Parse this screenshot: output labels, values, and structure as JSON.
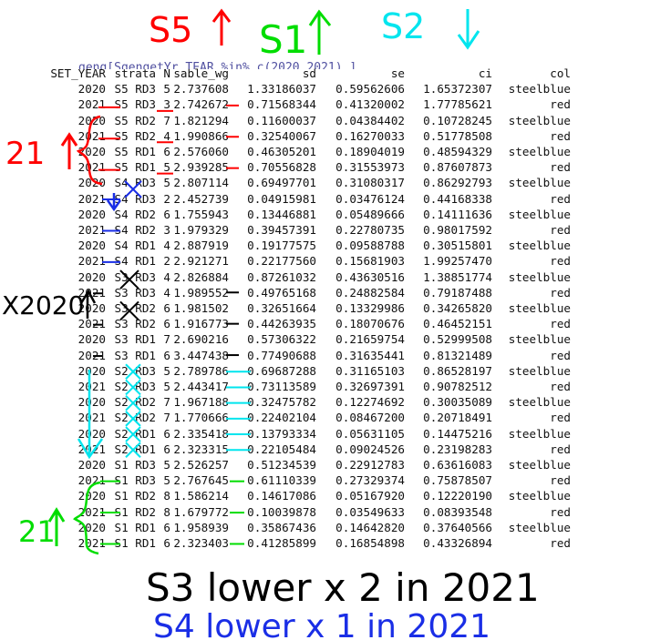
{
  "top_code": "geng[SgengetYr_TEAR %in% c(2020,2021),]",
  "annotations": {
    "top": [
      {
        "text": "S5",
        "arrow": "up",
        "color": "#ff0000"
      },
      {
        "text": "S1",
        "arrow": "up",
        "color": "#00dd00"
      },
      {
        "text": "S2",
        "arrow": "down",
        "color": "#00e5ee"
      }
    ],
    "left_21_red": "21",
    "left_x2020": "X2020",
    "left_21_green": "21",
    "note_s3": "S3 lower x 2 in 2021",
    "note_s4": "S4 lower x 1 in 2021",
    "colors": {
      "red": "#ff0000",
      "green": "#00dd00",
      "cyan": "#00e5ee",
      "blue": "#1a2ee6",
      "black": "#000000"
    }
  },
  "table": {
    "headers": [
      "SET_YEAR",
      "strata",
      "N",
      "sable_wg",
      "sd",
      "se",
      "ci",
      "col"
    ],
    "rows": [
      [
        "2020",
        "S5 RD3",
        "5",
        "2.737608",
        "1.33186037",
        "0.59562606",
        "1.65372307",
        "steelblue"
      ],
      [
        "2021",
        "S5 RD3",
        "3",
        "2.742672",
        "0.71568344",
        "0.41320002",
        "1.77785621",
        "red"
      ],
      [
        "2020",
        "S5 RD2",
        "7",
        "1.821294",
        "0.11600037",
        "0.04384402",
        "0.10728245",
        "steelblue"
      ],
      [
        "2021",
        "S5 RD2",
        "4",
        "1.990866",
        "0.32540067",
        "0.16270033",
        "0.51778508",
        "red"
      ],
      [
        "2020",
        "S5 RD1",
        "6",
        "2.576060",
        "0.46305201",
        "0.18904019",
        "0.48594329",
        "steelblue"
      ],
      [
        "2021",
        "S5 RD1",
        "5",
        "2.939285",
        "0.70556828",
        "0.31553973",
        "0.87607873",
        "red"
      ],
      [
        "2020",
        "S4 RD3",
        "5",
        "2.807114",
        "0.69497701",
        "0.31080317",
        "0.86292793",
        "steelblue"
      ],
      [
        "2021",
        "S4 RD3",
        "2",
        "2.452739",
        "0.04915981",
        "0.03476124",
        "0.44168338",
        "red"
      ],
      [
        "2020",
        "S4 RD2",
        "6",
        "1.755943",
        "0.13446881",
        "0.05489666",
        "0.14111636",
        "steelblue"
      ],
      [
        "2021",
        "S4 RD2",
        "3",
        "1.979329",
        "0.39457391",
        "0.22780735",
        "0.98017592",
        "red"
      ],
      [
        "2020",
        "S4 RD1",
        "4",
        "2.887919",
        "0.19177575",
        "0.09588788",
        "0.30515801",
        "steelblue"
      ],
      [
        "2021",
        "S4 RD1",
        "2",
        "2.921271",
        "0.22177560",
        "0.15681903",
        "1.99257470",
        "red"
      ],
      [
        "2020",
        "S3 RD3",
        "4",
        "2.826884",
        "0.87261032",
        "0.43630516",
        "1.38851774",
        "steelblue"
      ],
      [
        "2021",
        "S3 RD3",
        "4",
        "1.989552",
        "0.49765168",
        "0.24882584",
        "0.79187488",
        "red"
      ],
      [
        "2020",
        "S3 RD2",
        "6",
        "1.981502",
        "0.32651664",
        "0.13329986",
        "0.34265820",
        "steelblue"
      ],
      [
        "2021",
        "S3 RD2",
        "6",
        "1.916773",
        "0.44263935",
        "0.18070676",
        "0.46452151",
        "red"
      ],
      [
        "2020",
        "S3 RD1",
        "7",
        "2.690216",
        "0.57306322",
        "0.21659754",
        "0.52999508",
        "steelblue"
      ],
      [
        "2021",
        "S3 RD1",
        "6",
        "3.447438",
        "0.77490688",
        "0.31635441",
        "0.81321489",
        "red"
      ],
      [
        "2020",
        "S2 RD3",
        "5",
        "2.789786",
        "0.69687288",
        "0.31165103",
        "0.86528197",
        "steelblue"
      ],
      [
        "2021",
        "S2 RD3",
        "5",
        "2.443417",
        "0.73113589",
        "0.32697391",
        "0.90782512",
        "red"
      ],
      [
        "2020",
        "S2 RD2",
        "7",
        "1.967188",
        "0.32475782",
        "0.12274692",
        "0.30035089",
        "steelblue"
      ],
      [
        "2021",
        "S2 RD2",
        "7",
        "1.770666",
        "0.22402104",
        "0.08467200",
        "0.20718491",
        "red"
      ],
      [
        "2020",
        "S2 RD1",
        "6",
        "2.335418",
        "0.13793334",
        "0.05631105",
        "0.14475216",
        "steelblue"
      ],
      [
        "2021",
        "S2 RD1",
        "6",
        "2.323315",
        "0.22105484",
        "0.09024526",
        "0.23198283",
        "red"
      ],
      [
        "2020",
        "S1 RD3",
        "5",
        "2.526257",
        "0.51234539",
        "0.22912783",
        "0.63616083",
        "steelblue"
      ],
      [
        "2021",
        "S1 RD3",
        "5",
        "2.767645",
        "0.61110339",
        "0.27329374",
        "0.75878507",
        "red"
      ],
      [
        "2020",
        "S1 RD2",
        "8",
        "1.586214",
        "0.14617086",
        "0.05167920",
        "0.12220190",
        "steelblue"
      ],
      [
        "2021",
        "S1 RD2",
        "8",
        "1.679772",
        "0.10039878",
        "0.03549633",
        "0.08393548",
        "red"
      ],
      [
        "2020",
        "S1 RD1",
        "6",
        "1.958939",
        "0.35867436",
        "0.14642820",
        "0.37640566",
        "steelblue"
      ],
      [
        "2021",
        "S1 RD1",
        "6",
        "2.323403",
        "0.41285899",
        "0.16854898",
        "0.43326894",
        "red"
      ]
    ]
  }
}
